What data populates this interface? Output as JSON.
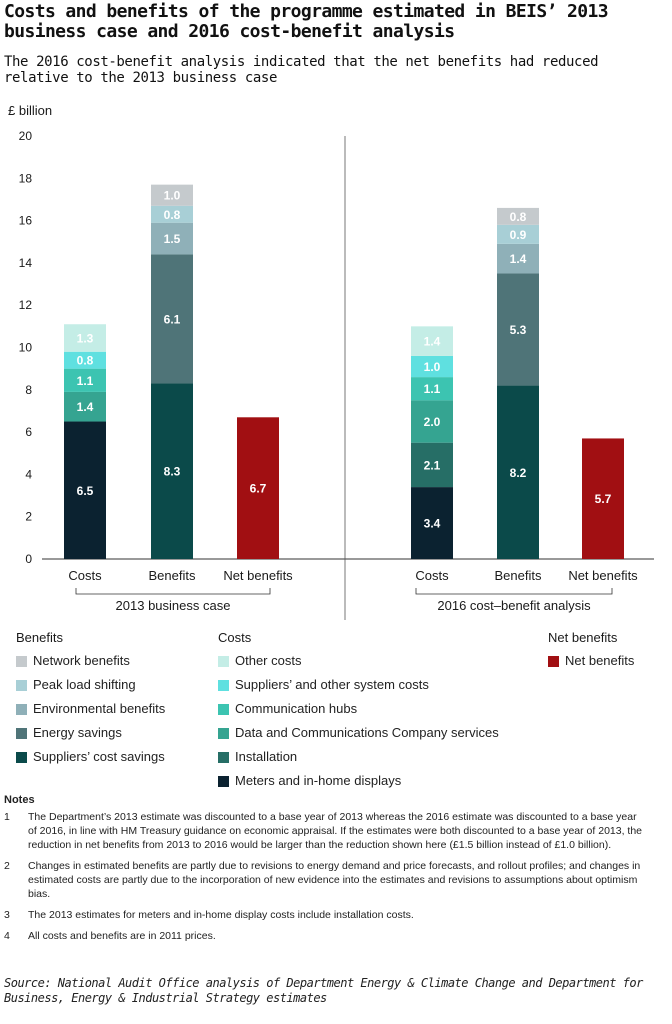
{
  "title": "Costs and benefits of the programme estimated in BEIS’ 2013 business case and 2016 cost-benefit analysis",
  "subtitle": "The 2016 cost-benefit analysis indicated that the net benefits had reduced relative to the 2013 business case",
  "colors": {
    "network_benefits": "#c5cacd",
    "peak_load_shifting": "#a8cfd6",
    "environmental_benefits": "#8fb0b8",
    "energy_savings": "#4f7478",
    "suppliers_cost_savings": "#0b4a4a",
    "other_costs": "#c4ede6",
    "suppliers_system_costs": "#5fe0e0",
    "communication_hubs": "#3cc4b1",
    "dcc_services": "#35a491",
    "installation": "#266e66",
    "meters": "#0b2230",
    "net_benefits": "#a10f12"
  },
  "chart_data": {
    "type": "bar",
    "stacked": true,
    "ylabel": "£ billion",
    "ylim": [
      0,
      20
    ],
    "yticks": [
      0,
      2,
      4,
      6,
      8,
      10,
      12,
      14,
      16,
      18,
      20
    ],
    "groups": [
      {
        "label": "2013 business case",
        "bars": [
          {
            "label": "Costs",
            "segments": [
              {
                "series": "Meters and in-home displays",
                "value": 6.5,
                "label": "6.5",
                "color_key": "meters"
              },
              {
                "series": "Data and Communications Company services",
                "value": 1.4,
                "label": "1.4",
                "color_key": "dcc_services"
              },
              {
                "series": "Communication hubs",
                "value": 1.1,
                "label": "1.1",
                "color_key": "communication_hubs"
              },
              {
                "series": "Suppliers’ and other system costs",
                "value": 0.8,
                "label": "0.8",
                "color_key": "suppliers_system_costs"
              },
              {
                "series": "Other costs",
                "value": 1.3,
                "label": "1.3",
                "color_key": "other_costs"
              }
            ]
          },
          {
            "label": "Benefits",
            "segments": [
              {
                "series": "Suppliers’ cost savings",
                "value": 8.3,
                "label": "8.3",
                "color_key": "suppliers_cost_savings"
              },
              {
                "series": "Energy savings",
                "value": 6.1,
                "label": "6.1",
                "color_key": "energy_savings"
              },
              {
                "series": "Environmental benefits",
                "value": 1.5,
                "label": "1.5",
                "color_key": "environmental_benefits"
              },
              {
                "series": "Peak load shifting",
                "value": 0.8,
                "label": "0.8",
                "color_key": "peak_load_shifting"
              },
              {
                "series": "Network benefits",
                "value": 1.0,
                "label": "1.0",
                "color_key": "network_benefits"
              }
            ]
          },
          {
            "label": "Net benefits",
            "segments": [
              {
                "series": "Net benefits",
                "value": 6.7,
                "label": "6.7",
                "color_key": "net_benefits"
              }
            ]
          }
        ]
      },
      {
        "label": "2016 cost–benefit analysis",
        "bars": [
          {
            "label": "Costs",
            "segments": [
              {
                "series": "Meters and in-home displays",
                "value": 3.4,
                "label": "3.4",
                "color_key": "meters"
              },
              {
                "series": "Installation",
                "value": 2.1,
                "label": "2.1",
                "color_key": "installation"
              },
              {
                "series": "Data and Communications Company services",
                "value": 2.0,
                "label": "2.0",
                "color_key": "dcc_services"
              },
              {
                "series": "Communication hubs",
                "value": 1.1,
                "label": "1.1",
                "color_key": "communication_hubs"
              },
              {
                "series": "Suppliers’ and other system costs",
                "value": 1.0,
                "label": "1.0",
                "color_key": "suppliers_system_costs"
              },
              {
                "series": "Other costs",
                "value": 1.4,
                "label": "1.4",
                "color_key": "other_costs"
              }
            ]
          },
          {
            "label": "Benefits",
            "segments": [
              {
                "series": "Suppliers’ cost savings",
                "value": 8.2,
                "label": "8.2",
                "color_key": "suppliers_cost_savings"
              },
              {
                "series": "Energy savings",
                "value": 5.3,
                "label": "5.3",
                "color_key": "energy_savings"
              },
              {
                "series": "Environmental benefits",
                "value": 1.4,
                "label": "1.4",
                "color_key": "environmental_benefits"
              },
              {
                "series": "Peak load shifting",
                "value": 0.9,
                "label": "0.9",
                "color_key": "peak_load_shifting"
              },
              {
                "series": "Network benefits",
                "value": 0.8,
                "label": "0.8",
                "color_key": "network_benefits"
              }
            ]
          },
          {
            "label": "Net benefits",
            "segments": [
              {
                "series": "Net benefits",
                "value": 5.7,
                "label": "5.7",
                "color_key": "net_benefits"
              }
            ]
          }
        ]
      }
    ]
  },
  "legend": {
    "benefits": {
      "heading": "Benefits",
      "items": [
        {
          "label": "Network benefits",
          "color_key": "network_benefits"
        },
        {
          "label": "Peak load shifting",
          "color_key": "peak_load_shifting"
        },
        {
          "label": "Environmental benefits",
          "color_key": "environmental_benefits"
        },
        {
          "label": "Energy savings",
          "color_key": "energy_savings"
        },
        {
          "label": "Suppliers’ cost savings",
          "color_key": "suppliers_cost_savings"
        }
      ]
    },
    "costs": {
      "heading": "Costs",
      "items": [
        {
          "label": "Other costs",
          "color_key": "other_costs"
        },
        {
          "label": "Suppliers’ and other system costs",
          "color_key": "suppliers_system_costs"
        },
        {
          "label": "Communication hubs",
          "color_key": "communication_hubs"
        },
        {
          "label": "Data and Communications Company services",
          "color_key": "dcc_services"
        },
        {
          "label": "Installation",
          "color_key": "installation"
        },
        {
          "label": "Meters and in-home displays",
          "color_key": "meters"
        }
      ]
    },
    "net": {
      "heading": "Net benefits",
      "items": [
        {
          "label": "Net benefits",
          "color_key": "net_benefits"
        }
      ]
    }
  },
  "notes": {
    "heading": "Notes",
    "items": [
      {
        "num": "1",
        "text": "The Department’s 2013 estimate was discounted to a base year of 2013 whereas the 2016 estimate was discounted to a base year of 2016, in line with HM Treasury guidance on economic appraisal. If the estimates were both discounted to a base year of 2013, the reduction in net benefits from 2013 to 2016 would be larger than the reduction shown here (£1.5 billion instead of £1.0 billion)."
      },
      {
        "num": "2",
        "text": "Changes in estimated benefits are partly due to revisions to energy demand and price forecasts, and rollout profiles; and changes in estimated costs are partly due to the incorporation of new evidence into the estimates and revisions to assumptions about optimism bias."
      },
      {
        "num": "3",
        "text": "The 2013 estimates for meters and in-home display costs include installation costs."
      },
      {
        "num": "4",
        "text": "All costs and benefits are in 2011 prices."
      }
    ]
  },
  "source": "Source: National Audit Office analysis of Department Energy & Climate Change and Department for Business, Energy & Industrial Strategy estimates"
}
